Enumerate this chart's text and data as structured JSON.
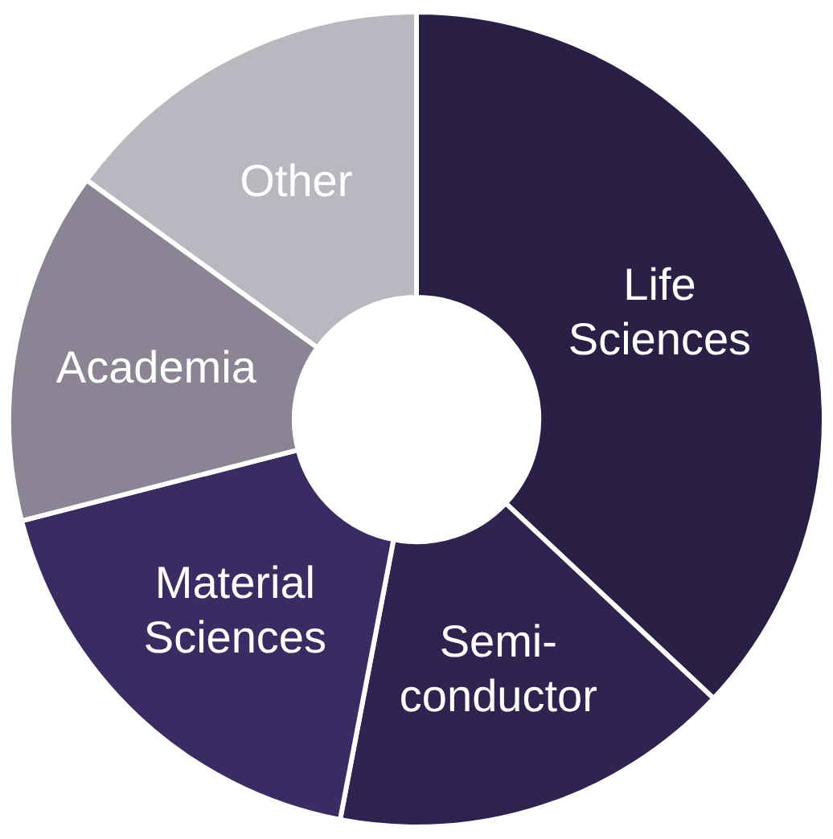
{
  "chart_data": {
    "type": "donut",
    "categories": [
      "Life Sciences",
      "Semi-conductor",
      "Material Sciences",
      "Academia",
      "Other"
    ],
    "values": [
      37,
      16,
      18,
      14,
      15
    ],
    "colors": [
      "#2a1f45",
      "#30234f",
      "#3a2c63",
      "#8a8494",
      "#b9b7bf"
    ],
    "legend": false
  }
}
